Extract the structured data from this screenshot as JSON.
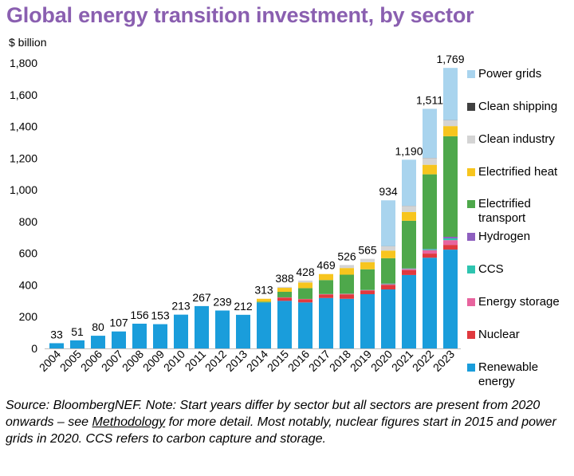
{
  "title": "Global energy transition investment, by sector",
  "colors": {
    "title": "#8a5fb0",
    "renewable": "#1a9ddb",
    "nuclear": "#e0393e",
    "storage": "#e8649e",
    "ccs": "#2ec4b0",
    "hydrogen": "#8e5fbf",
    "transport": "#4ea84b",
    "heat": "#f7c51e",
    "industry": "#d4d4d4",
    "shipping": "#404040",
    "grids": "#a9d4ee"
  },
  "chart_data": {
    "type": "bar",
    "stacked": true,
    "ylabel": "$ billion",
    "ylim": [
      0,
      1800
    ],
    "yticks": [
      0,
      200,
      400,
      600,
      800,
      1000,
      1200,
      1400,
      1600,
      1800
    ],
    "ytick_labels": [
      "0",
      "200",
      "400",
      "600",
      "800",
      "1,000",
      "1,200",
      "1,400",
      "1,600",
      "1,800"
    ],
    "grid": false,
    "legend_position": "right",
    "categories": [
      "2004",
      "2005",
      "2006",
      "2007",
      "2008",
      "2009",
      "2010",
      "2011",
      "2012",
      "2013",
      "2014",
      "2015",
      "2016",
      "2017",
      "2018",
      "2019",
      "2020",
      "2021",
      "2022",
      "2023"
    ],
    "totals": [
      33,
      51,
      80,
      107,
      156,
      153,
      213,
      267,
      239,
      212,
      313,
      388,
      428,
      469,
      526,
      565,
      934,
      1190,
      1511,
      1769
    ],
    "total_labels": [
      "33",
      "51",
      "80",
      "107",
      "156",
      "153",
      "213",
      "267",
      "239",
      "212",
      "313",
      "388",
      "428",
      "469",
      "526",
      "565",
      "934",
      "1,190",
      "1,511",
      "1,769"
    ],
    "series": [
      {
        "name": "Renewable energy",
        "color": "#1a9ddb",
        "values": [
          33,
          51,
          80,
          107,
          156,
          153,
          213,
          267,
          239,
          212,
          290,
          300,
          290,
          318,
          313,
          342,
          372,
          463,
          572,
          623
        ]
      },
      {
        "name": "Nuclear",
        "color": "#e0393e",
        "values": [
          0,
          0,
          0,
          0,
          0,
          0,
          0,
          0,
          0,
          0,
          0,
          20,
          20,
          22,
          28,
          23,
          28,
          30,
          26,
          30
        ]
      },
      {
        "name": "Energy storage",
        "color": "#e8649e",
        "values": [
          0,
          0,
          0,
          0,
          0,
          0,
          0,
          0,
          0,
          0,
          0,
          2,
          2,
          2,
          3,
          3,
          5,
          8,
          22,
          30
        ]
      },
      {
        "name": "CCS",
        "color": "#2ec4b0",
        "values": [
          0,
          0,
          0,
          0,
          0,
          0,
          0,
          0,
          0,
          0,
          0,
          0,
          0,
          1,
          1,
          1,
          3,
          3,
          6,
          11
        ]
      },
      {
        "name": "Hydrogen",
        "color": "#8e5fbf",
        "values": [
          0,
          0,
          0,
          0,
          0,
          0,
          0,
          0,
          0,
          0,
          0,
          0,
          0,
          0,
          0,
          0,
          1,
          1,
          2,
          10
        ]
      },
      {
        "name": "Electrified transport",
        "color": "#4ea84b",
        "values": [
          0,
          0,
          0,
          0,
          0,
          0,
          0,
          0,
          0,
          0,
          5,
          35,
          68,
          88,
          120,
          130,
          160,
          300,
          470,
          634
        ]
      },
      {
        "name": "Electrified heat",
        "color": "#f7c51e",
        "values": [
          0,
          0,
          0,
          0,
          0,
          0,
          0,
          0,
          0,
          0,
          18,
          25,
          36,
          38,
          42,
          45,
          48,
          55,
          60,
          64
        ]
      },
      {
        "name": "Clean industry",
        "color": "#d4d4d4",
        "values": [
          0,
          0,
          0,
          0,
          0,
          0,
          0,
          0,
          0,
          0,
          0,
          6,
          12,
          0,
          19,
          21,
          27,
          38,
          42,
          37
        ]
      },
      {
        "name": "Clean shipping",
        "color": "#404040",
        "values": [
          0,
          0,
          0,
          0,
          0,
          0,
          0,
          0,
          0,
          0,
          0,
          0,
          0,
          0,
          0,
          0,
          1,
          1,
          1,
          1
        ]
      },
      {
        "name": "Power grids",
        "color": "#a9d4ee",
        "values": [
          0,
          0,
          0,
          0,
          0,
          0,
          0,
          0,
          0,
          0,
          0,
          0,
          0,
          0,
          0,
          0,
          289,
          291,
          310,
          329
        ]
      }
    ]
  },
  "legend": [
    {
      "label": "Power grids",
      "color": "#a9d4ee"
    },
    {
      "label": "Clean shipping",
      "color": "#404040"
    },
    {
      "label": "Clean industry",
      "color": "#d4d4d4"
    },
    {
      "label": "Electrified heat",
      "color": "#f7c51e"
    },
    {
      "label": "Electrified transport",
      "color": "#4ea84b"
    },
    {
      "label": "Hydrogen",
      "color": "#8e5fbf"
    },
    {
      "label": "CCS",
      "color": "#2ec4b0"
    },
    {
      "label": "Energy storage",
      "color": "#e8649e"
    },
    {
      "label": "Nuclear",
      "color": "#e0393e"
    },
    {
      "label": "Renewable energy",
      "color": "#1a9ddb"
    }
  ],
  "source": {
    "before": "Source: BloombergNEF. Note: Start years differ by sector but all sectors are present from 2020 onwards – see ",
    "link": "Methodology",
    "after": " for more detail. Most notably, nuclear figures start in 2015 and power grids in 2020. CCS refers to carbon capture and storage."
  }
}
